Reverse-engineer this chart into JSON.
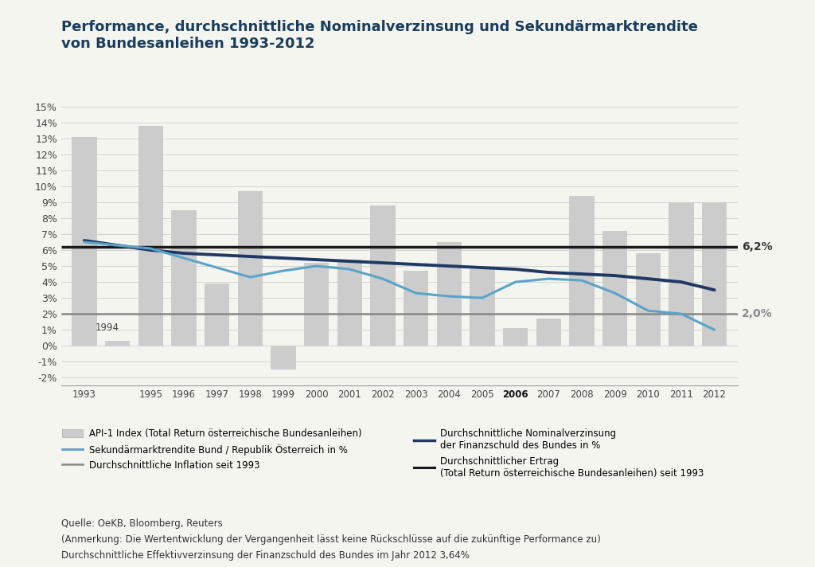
{
  "title_line1": "Performance, durchschnittliche Nominalverzinsung und Sekundärmarktrendite",
  "title_line2": "von Bundesanleihen 1993-2012",
  "title_color": "#1a3d5c",
  "background_color": "#f5f5f0",
  "years": [
    1993,
    1994,
    1995,
    1996,
    1997,
    1998,
    1999,
    2000,
    2001,
    2002,
    2003,
    2004,
    2005,
    2006,
    2007,
    2008,
    2009,
    2010,
    2011,
    2012
  ],
  "bar_values": [
    13.1,
    0.3,
    13.8,
    8.5,
    3.9,
    9.7,
    -1.5,
    5.2,
    5.4,
    8.8,
    4.7,
    6.5,
    4.8,
    1.1,
    1.7,
    9.4,
    7.2,
    5.8,
    9.0,
    9.0
  ],
  "bar_color": "#cccccc",
  "nominal_verzinsung": [
    6.6,
    6.3,
    6.0,
    5.8,
    5.7,
    5.6,
    5.5,
    5.4,
    5.3,
    5.2,
    5.1,
    5.0,
    4.9,
    4.8,
    4.6,
    4.5,
    4.4,
    4.2,
    4.0,
    3.5
  ],
  "nominal_color": "#1f3864",
  "sekundar_rendite": [
    6.5,
    6.3,
    6.1,
    5.5,
    4.9,
    4.3,
    4.7,
    5.0,
    4.8,
    4.2,
    3.3,
    3.1,
    3.0,
    4.0,
    4.2,
    4.1,
    3.3,
    2.2,
    2.0,
    1.0
  ],
  "sekundar_color": "#5ba3c9",
  "avg_ertrag_value": 6.2,
  "avg_ertrag_color": "#1a1a1a",
  "avg_inflation_value": 2.0,
  "avg_inflation_color": "#888888",
  "ylim_min": -2.5,
  "ylim_max": 16.0,
  "yticks": [
    -2,
    -1,
    0,
    1,
    2,
    3,
    4,
    5,
    6,
    7,
    8,
    9,
    10,
    11,
    12,
    13,
    14,
    15
  ],
  "annotation_62": "6,2%",
  "annotation_20": "2,0%",
  "legend_col1": [
    {
      "label": "API-1 Index (Total Return österreichische Bundesanleihen)",
      "type": "bar",
      "color": "#cccccc"
    },
    {
      "label": "Sekundärmarktrendite Bund / Republik Österreich in %",
      "type": "line",
      "color": "#5ba3c9"
    },
    {
      "label": "Durchschnittliche Inflation seit 1993",
      "type": "line",
      "color": "#888888"
    }
  ],
  "legend_col2": [
    {
      "label": "Durchschnittliche Nominalverzinsung\nder Finanzschuld des Bundes in %",
      "type": "line",
      "color": "#1f3864"
    },
    {
      "label": "Durchschnittlicher Ertrag\n(Total Return österreichische Bundesanleihen) seit 1993",
      "type": "line",
      "color": "#1a1a1a"
    }
  ],
  "footnote_lines": [
    "Quelle: OeKB, Bloomberg, Reuters",
    "(Anmerkung: Die Wertentwicklung der Vergangenheit lässt keine Rückschlüsse auf die zukünftige Performance zu)",
    "Durchschnittliche Effektivverzinsung der Finanzschuld des Bundes im Jahr 2012 3,64%"
  ]
}
